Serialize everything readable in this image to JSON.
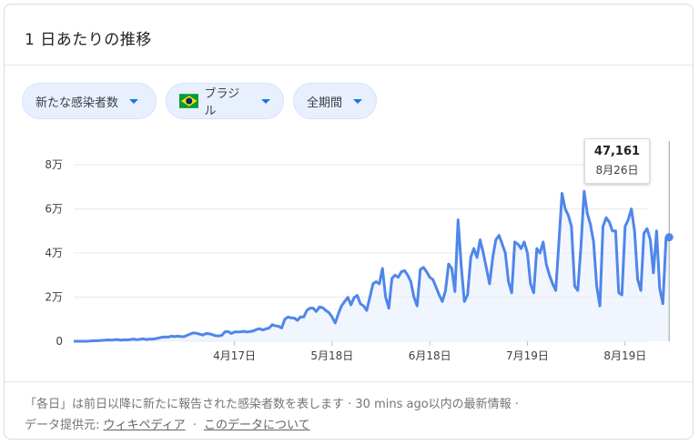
{
  "card": {
    "title": "1 日あたりの推移"
  },
  "filters": {
    "metric": "新たな感染者数",
    "country": "ブラジル",
    "period": "全期間"
  },
  "tooltip": {
    "value": "47,161",
    "date": "8月26日"
  },
  "footer": {
    "line1": "「各日」は前日以降に新たに報告された感染者数を表します · 30 mins ago以内の最新情報 ·",
    "source_label": "データ提供元:",
    "source_link": "ウィキペディア",
    "sep": "·",
    "about_link": "このデータについて"
  },
  "colors": {
    "line": "#4f86ea",
    "chip_bg": "#e8f0fe",
    "caret": "#1a73e8"
  },
  "icons": {
    "flag": "brazil-flag-icon",
    "dropdown": "caret-down-icon"
  },
  "chart_data": {
    "type": "line",
    "xlabel": "",
    "ylabel": "",
    "ylim": [
      0,
      80000
    ],
    "y_ticks": [
      0,
      20000,
      40000,
      60000,
      80000
    ],
    "y_tick_labels": [
      "0",
      "2万",
      "4万",
      "6万",
      "8万"
    ],
    "x_tick_labels": [
      "4月17日",
      "5月18日",
      "6月18日",
      "7月19日",
      "8月19日"
    ],
    "x_tick_days": [
      51,
      82,
      113,
      144,
      175
    ],
    "x_range_days": [
      0,
      182
    ],
    "grid": true,
    "series": [
      {
        "values": [
          0,
          0,
          0,
          0,
          0,
          100,
          200,
          200,
          300,
          400,
          500,
          600,
          500,
          700,
          800,
          500,
          700,
          600,
          800,
          1000,
          700,
          900,
          1100,
          800,
          1000,
          1000,
          1200,
          1500,
          1800,
          2000,
          1900,
          2300,
          2100,
          2300,
          2100,
          2100,
          2700,
          3300,
          3800,
          3600,
          3200,
          2800,
          3500,
          3400,
          3000,
          2500,
          2400,
          2700,
          4300,
          4400,
          3500,
          4200,
          4200,
          4300,
          4500,
          4200,
          4400,
          4700,
          5300,
          5700,
          5100,
          5600,
          6000,
          7500,
          7000,
          6800,
          6000,
          10000,
          11000,
          10600,
          10500,
          9500,
          11000,
          11000,
          14000,
          15000,
          15000,
          13500,
          15500,
          15200,
          14000,
          13000,
          11000,
          8300,
          12500,
          16000,
          18000,
          19900,
          16500,
          19800,
          20800,
          17000,
          16000,
          14000,
          20000,
          26000,
          27000,
          26000,
          33000,
          20000,
          15000,
          28500,
          30000,
          29000,
          31500,
          32000,
          30000,
          27000,
          20000,
          16000,
          32500,
          33500,
          31500,
          29000,
          28000,
          24500,
          21000,
          18000,
          23000,
          35000,
          33000,
          22500,
          55000,
          34000,
          18000,
          21000,
          38000,
          42000,
          38000,
          46000,
          40000,
          33000,
          26000,
          38000,
          46000,
          48000,
          44000,
          40000,
          27000,
          22000,
          45000,
          44000,
          42000,
          45000,
          40000,
          26000,
          22000,
          42000,
          40000,
          45000,
          35000,
          30000,
          26000,
          23000,
          45000,
          67000,
          60000,
          57000,
          52000,
          25000,
          23000,
          43000,
          68000,
          58000,
          53000,
          45000,
          25000,
          16000,
          52000,
          56000,
          54000,
          50000,
          50000,
          22000,
          21000,
          52000,
          55000,
          60000,
          50000,
          28000,
          23000,
          49000,
          51000,
          46000,
          31000,
          50000,
          24000,
          17000,
          47000,
          47161
        ]
      }
    ]
  }
}
